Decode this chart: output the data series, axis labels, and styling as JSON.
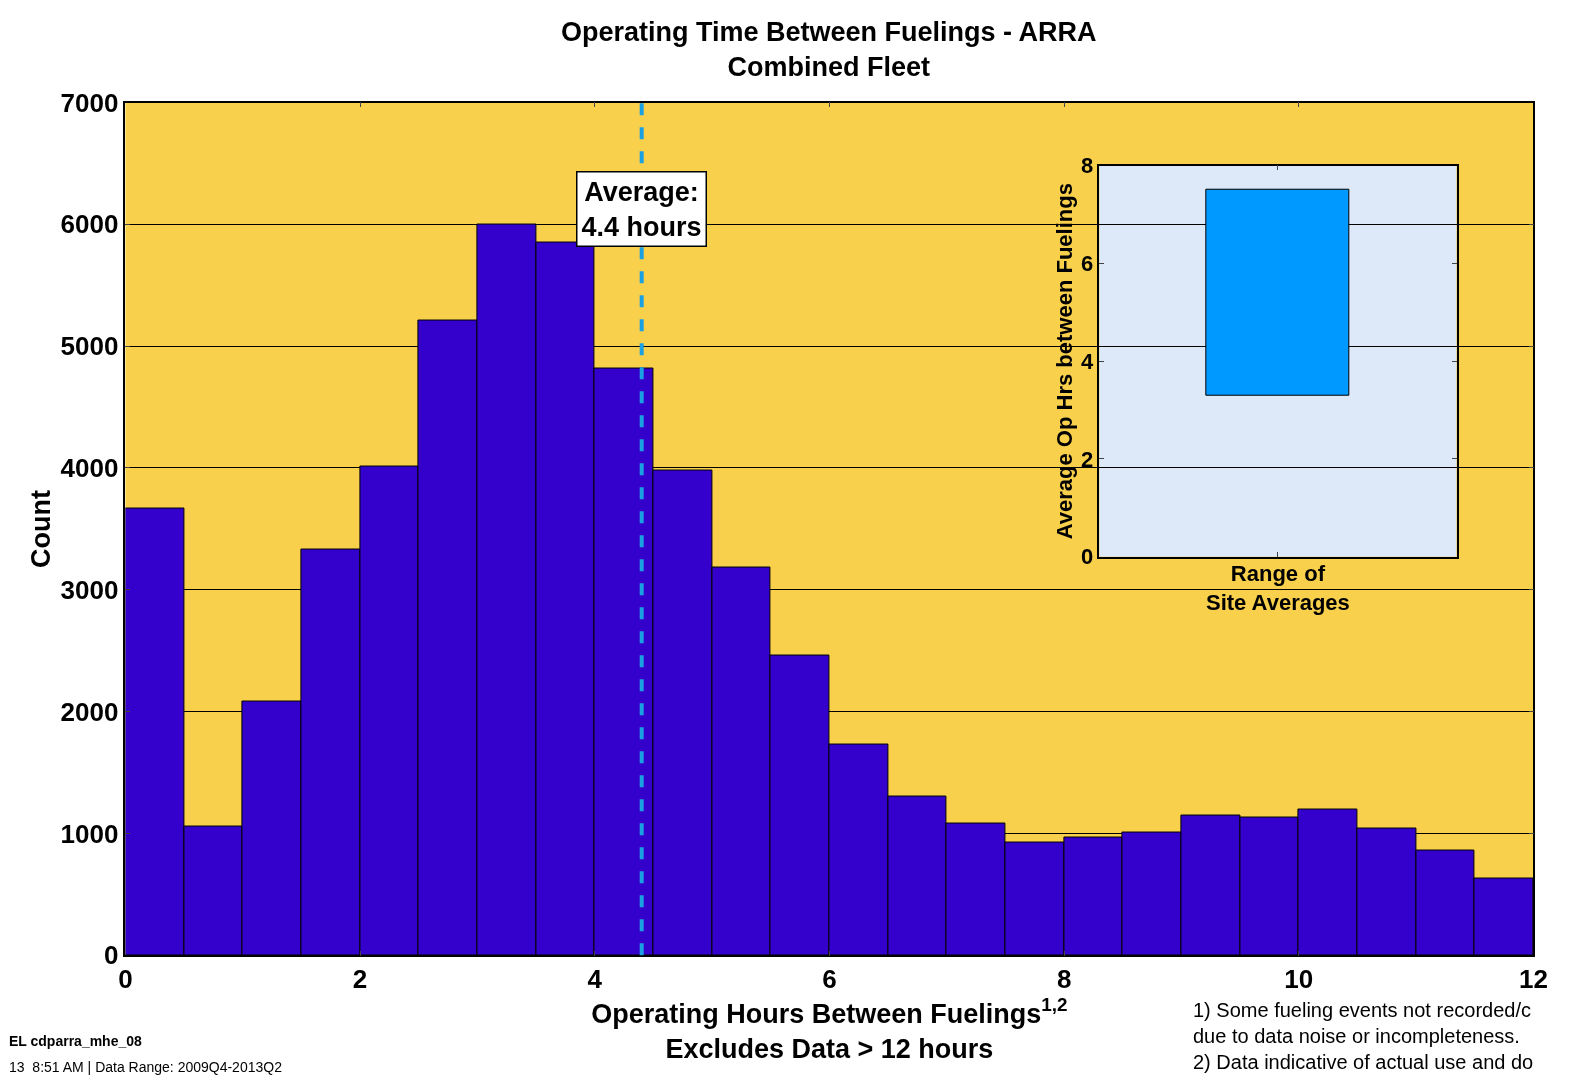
{
  "chart_data": [
    {
      "type": "histogram",
      "title": "Operating Time Between Fuelings - ARRA\nCombined Fleet",
      "xlabel": "Operating Hours Between Fuelings$^{1,2}$\nExcludes Data > 12 hours",
      "ylabel": "Count",
      "bins": [
        0,
        0.5,
        1,
        1.5,
        2,
        2.5,
        3,
        3.5,
        4,
        4.5,
        5,
        5.5,
        6,
        6.5,
        7,
        7.5,
        8,
        8.5,
        9,
        9.5,
        10,
        10.5,
        11,
        11.5,
        12
      ],
      "values": [
        3670,
        1060,
        2080,
        3330,
        4010,
        5210,
        6000,
        5850,
        4820,
        3980,
        3180,
        2460,
        1730,
        1300,
        1080,
        930,
        970,
        1010,
        1150,
        1130,
        1200,
        1040,
        860,
        630
      ],
      "color": "#3300cc",
      "xlim": [
        0,
        12
      ],
      "xticks": [
        0,
        2,
        4,
        6,
        8,
        10,
        12
      ],
      "ylim": [
        0,
        7000
      ],
      "yticks": [
        0,
        1000,
        2000,
        3000,
        4000,
        5000,
        6000,
        7000
      ],
      "grid": "y",
      "ref_lines": [
        {
          "axis": "x",
          "value": 4.4,
          "label": "Average:\n4.4 hours",
          "color": "#1ba1e2",
          "line_style": "dashed"
        }
      ],
      "annotations": [
        "EL cdparra_mhe_08",
        "13  8:51 AM | Data Range: 2009Q4-2013Q2",
        "1) Some fueling events not recorded/c\ndue to data noise or incompleteness.\n2) Data indicative of actual use and do"
      ]
    },
    {
      "type": "bar",
      "categories": [
        null
      ],
      "xlabel": "Range of\nSite Averages",
      "ylabel": "Average Op Hrs between Fuelings",
      "base": [
        3.3
      ],
      "values": [
        4.2
      ],
      "color": "#0099ff",
      "ylim": [
        0,
        8
      ],
      "yticks": [
        0,
        2,
        4,
        6,
        8
      ]
    }
  ]
}
